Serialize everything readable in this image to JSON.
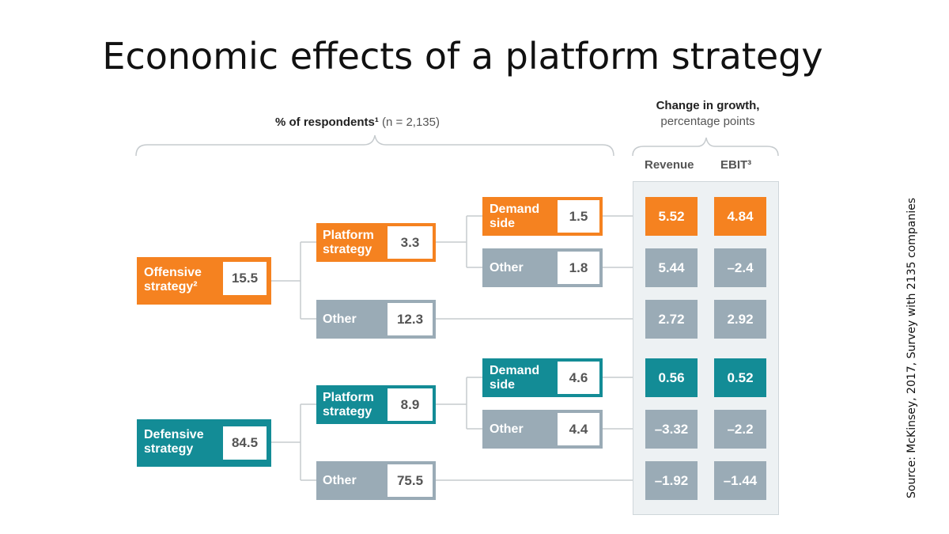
{
  "title": "Economic effects of a platform strategy",
  "respondents_header": {
    "bold": "% of respondents¹",
    "light": "(n = 2,135)"
  },
  "growth_header": {
    "line1": "Change in growth,",
    "line2": "percentage points"
  },
  "col_revenue": "Revenue",
  "col_ebit": "EBIT³",
  "source": "Source: McKinsey, 2017, Survey with 2135 companies",
  "colors": {
    "orange": "#f58220",
    "teal": "#138c96",
    "gray": "#9aabb6"
  },
  "nodes": {
    "offensive": {
      "l1": "Offensive",
      "l2": "strategy²",
      "value": "15.5"
    },
    "off_platform": {
      "l1": "Platform",
      "l2": "strategy",
      "value": "3.3"
    },
    "off_other": {
      "l1": "Other",
      "value": "12.3"
    },
    "off_demand": {
      "l1": "Demand",
      "l2": "side",
      "value": "1.5"
    },
    "off_plat_other": {
      "l1": "Other",
      "value": "1.8"
    },
    "defensive": {
      "l1": "Defensive",
      "l2": "strategy",
      "value": "84.5"
    },
    "def_platform": {
      "l1": "Platform",
      "l2": "strategy",
      "value": "8.9"
    },
    "def_other": {
      "l1": "Other",
      "value": "75.5"
    },
    "def_demand": {
      "l1": "Demand",
      "l2": "side",
      "value": "4.6"
    },
    "def_plat_other": {
      "l1": "Other",
      "value": "4.4"
    }
  },
  "metrics": {
    "r1": {
      "revenue": "5.52",
      "ebit": "4.84"
    },
    "r2": {
      "revenue": "5.44",
      "ebit": "–2.4"
    },
    "r3": {
      "revenue": "2.72",
      "ebit": "2.92"
    },
    "r4": {
      "revenue": "0.56",
      "ebit": "0.52"
    },
    "r5": {
      "revenue": "–3.32",
      "ebit": "–2.2"
    },
    "r6": {
      "revenue": "–1.92",
      "ebit": "–1.44"
    }
  }
}
